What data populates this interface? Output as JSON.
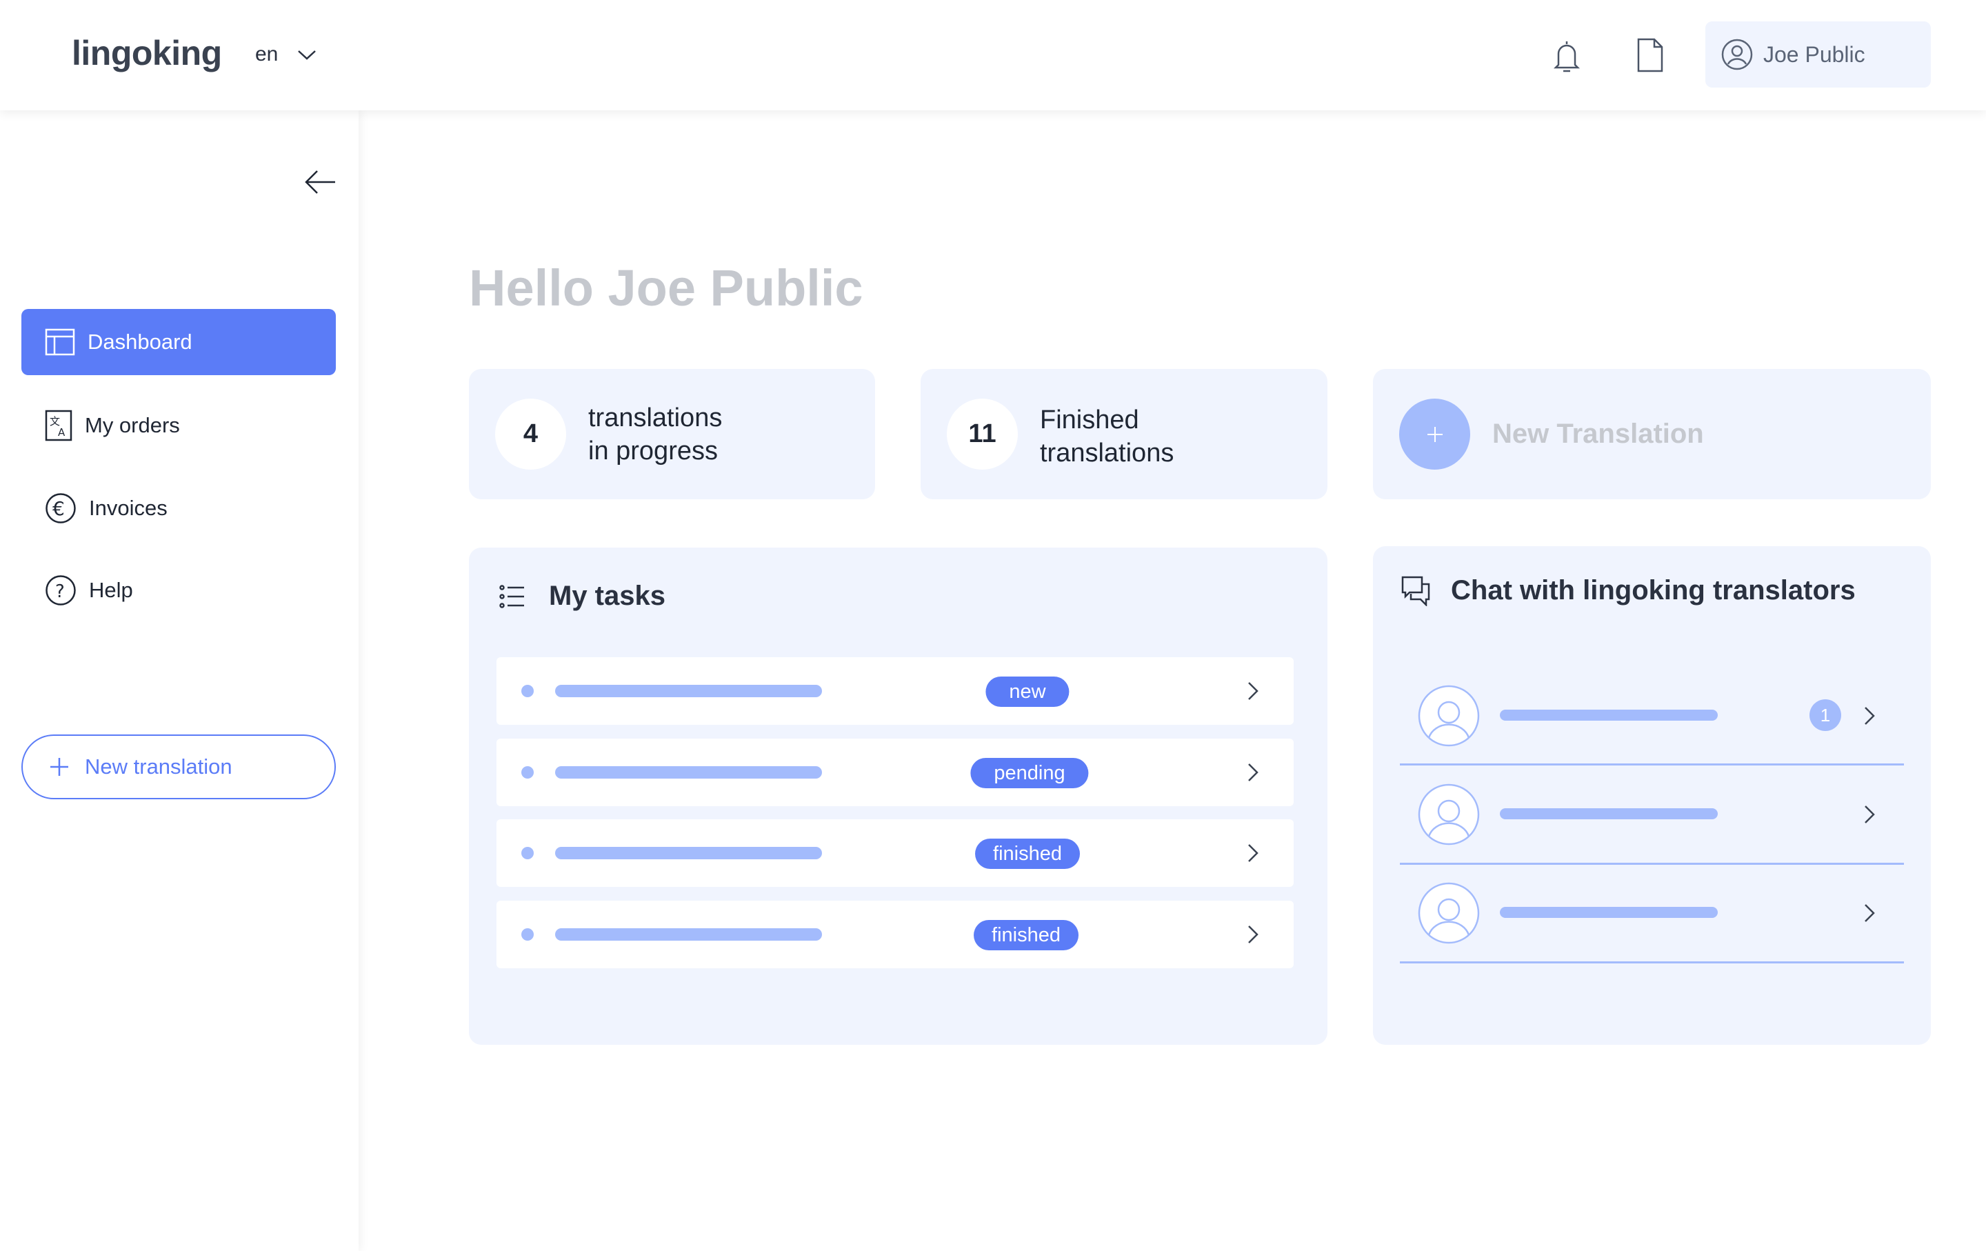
{
  "header": {
    "logo": "lingoking",
    "language": "en",
    "user_name": "Joe Public"
  },
  "sidebar": {
    "items": [
      {
        "label": "Dashboard",
        "icon": "dashboard-icon",
        "active": true
      },
      {
        "label": "My orders",
        "icon": "translate-icon"
      },
      {
        "label": "Invoices",
        "icon": "euro-icon"
      },
      {
        "label": "Help",
        "icon": "help-icon"
      }
    ],
    "new_translation": "New translation"
  },
  "main": {
    "greeting": "Hello Joe Public",
    "stats": [
      {
        "value": "4",
        "line1": "translations",
        "line2": "in progress"
      },
      {
        "value": "11",
        "line1": "Finished",
        "line2": "translations"
      }
    ],
    "new_translation_card": "New Translation",
    "tasks": {
      "title": "My tasks",
      "items": [
        {
          "status": "new"
        },
        {
          "status": "pending"
        },
        {
          "status": "finished"
        },
        {
          "status": "finished"
        }
      ]
    },
    "chat": {
      "title": "Chat with lingoking translators",
      "items": [
        {
          "unread": "1"
        },
        {
          "unread": null
        },
        {
          "unread": null
        }
      ]
    }
  },
  "colors": {
    "primary": "#5b7cf7",
    "placeholder_bar": "#a3bbfc",
    "card_bg": "#f0f4fe"
  }
}
